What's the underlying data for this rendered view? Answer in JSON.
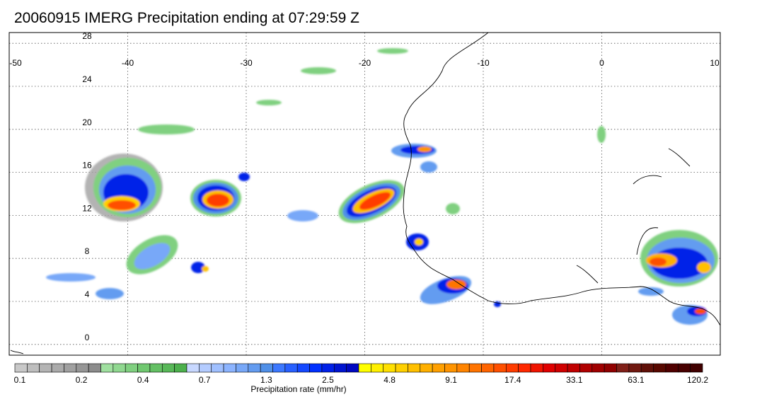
{
  "title": "20060915 IMERG Precipitation ending at 07:29:59 Z",
  "map": {
    "lon_range": [
      -50,
      10
    ],
    "lat_range": [
      -1,
      29
    ],
    "lon_ticks": [
      "-50",
      "-40",
      "-30",
      "-20",
      "-10",
      "0",
      "10"
    ],
    "lon_tick_values": [
      -50,
      -40,
      -30,
      -20,
      -10,
      0,
      10
    ],
    "lat_ticks": [
      "0",
      "4",
      "8",
      "12",
      "16",
      "20",
      "24",
      "28"
    ],
    "lat_tick_values": [
      0,
      4,
      8,
      12,
      16,
      20,
      24,
      28
    ],
    "grid": "dotted"
  },
  "colorbar": {
    "label": "Precipitation rate (mm/hr)",
    "tick_labels": [
      "0.1",
      "0.2",
      "0.4",
      "0.7",
      "1.3",
      "2.5",
      "4.8",
      "9.1",
      "17.4",
      "33.1",
      "63.1",
      "120.2"
    ],
    "colors": [
      "#c8c8c8",
      "#bebebe",
      "#b4b4b4",
      "#aaaaaa",
      "#a0a0a0",
      "#969696",
      "#8c8c8c",
      "#a0e0a0",
      "#90d890",
      "#80d080",
      "#70c870",
      "#64c064",
      "#58b858",
      "#4cb04c",
      "#c8d8ff",
      "#b4ccff",
      "#a0c0ff",
      "#8cb4ff",
      "#78a8f8",
      "#649cf0",
      "#5090e8",
      "#3c78ff",
      "#2860ff",
      "#1448ff",
      "#0030ff",
      "#0020e8",
      "#0014d0",
      "#0008c0",
      "#ffff00",
      "#fff000",
      "#ffe000",
      "#ffd000",
      "#ffc000",
      "#ffb000",
      "#ffa000",
      "#ff9400",
      "#ff8400",
      "#ff7400",
      "#ff6400",
      "#ff5000",
      "#ff3c00",
      "#ff2800",
      "#f01400",
      "#e00000",
      "#d00000",
      "#c00000",
      "#b00000",
      "#a00000",
      "#900000",
      "#802018",
      "#701810",
      "#601008",
      "#580800",
      "#500000",
      "#480000",
      "#400000"
    ]
  }
}
